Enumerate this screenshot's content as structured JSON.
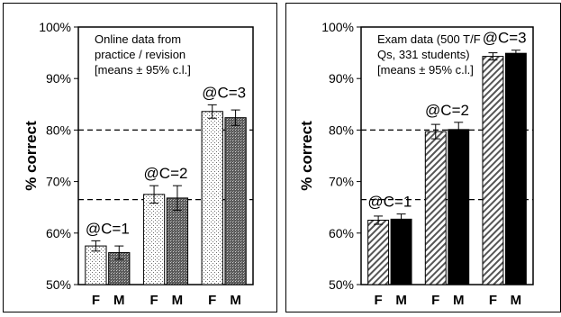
{
  "chart_data": [
    {
      "type": "bar",
      "ylabel": "% correct",
      "ylim": [
        50,
        100
      ],
      "yticks": [
        "50%",
        "60%",
        "70%",
        "80%",
        "90%",
        "100%"
      ],
      "annotation": [
        "Online data from",
        "practice / revision",
        "[means ± 95% c.l.]"
      ],
      "reference_lines": [
        80,
        66.5
      ],
      "categories": [
        "F",
        "M",
        "F",
        "M",
        "F",
        "M"
      ],
      "values": [
        57.5,
        56.2,
        67.5,
        66.8,
        83.6,
        82.4
      ],
      "errors": [
        1.0,
        1.3,
        1.7,
        2.4,
        1.3,
        1.5
      ],
      "fills": [
        "light-dots",
        "dark-dots",
        "light-dots",
        "dark-dots",
        "light-dots",
        "dark-dots"
      ],
      "group_labels": [
        "@C=1",
        "@C=2",
        "@C=3"
      ],
      "legend": "none",
      "grid": false
    },
    {
      "type": "bar",
      "ylabel": "% correct",
      "ylim": [
        50,
        100
      ],
      "yticks": [
        "50%",
        "60%",
        "70%",
        "80%",
        "90%",
        "100%"
      ],
      "annotation": [
        "Exam data (500 T/F",
        "Qs, 331 students)",
        "[means ± 95% c.l.]"
      ],
      "reference_lines": [
        80,
        66.5
      ],
      "categories": [
        "F",
        "M",
        "F",
        "M",
        "F",
        "M"
      ],
      "values": [
        62.5,
        62.7,
        79.7,
        80.1,
        94.3,
        94.9
      ],
      "errors": [
        0.8,
        1.0,
        1.4,
        1.4,
        0.7,
        0.6
      ],
      "fills": [
        "hatch",
        "black",
        "hatch",
        "black",
        "hatch",
        "black"
      ],
      "group_labels": [
        "@C=1",
        "@C=2",
        "@C=3"
      ],
      "legend": "none",
      "grid": false
    }
  ]
}
